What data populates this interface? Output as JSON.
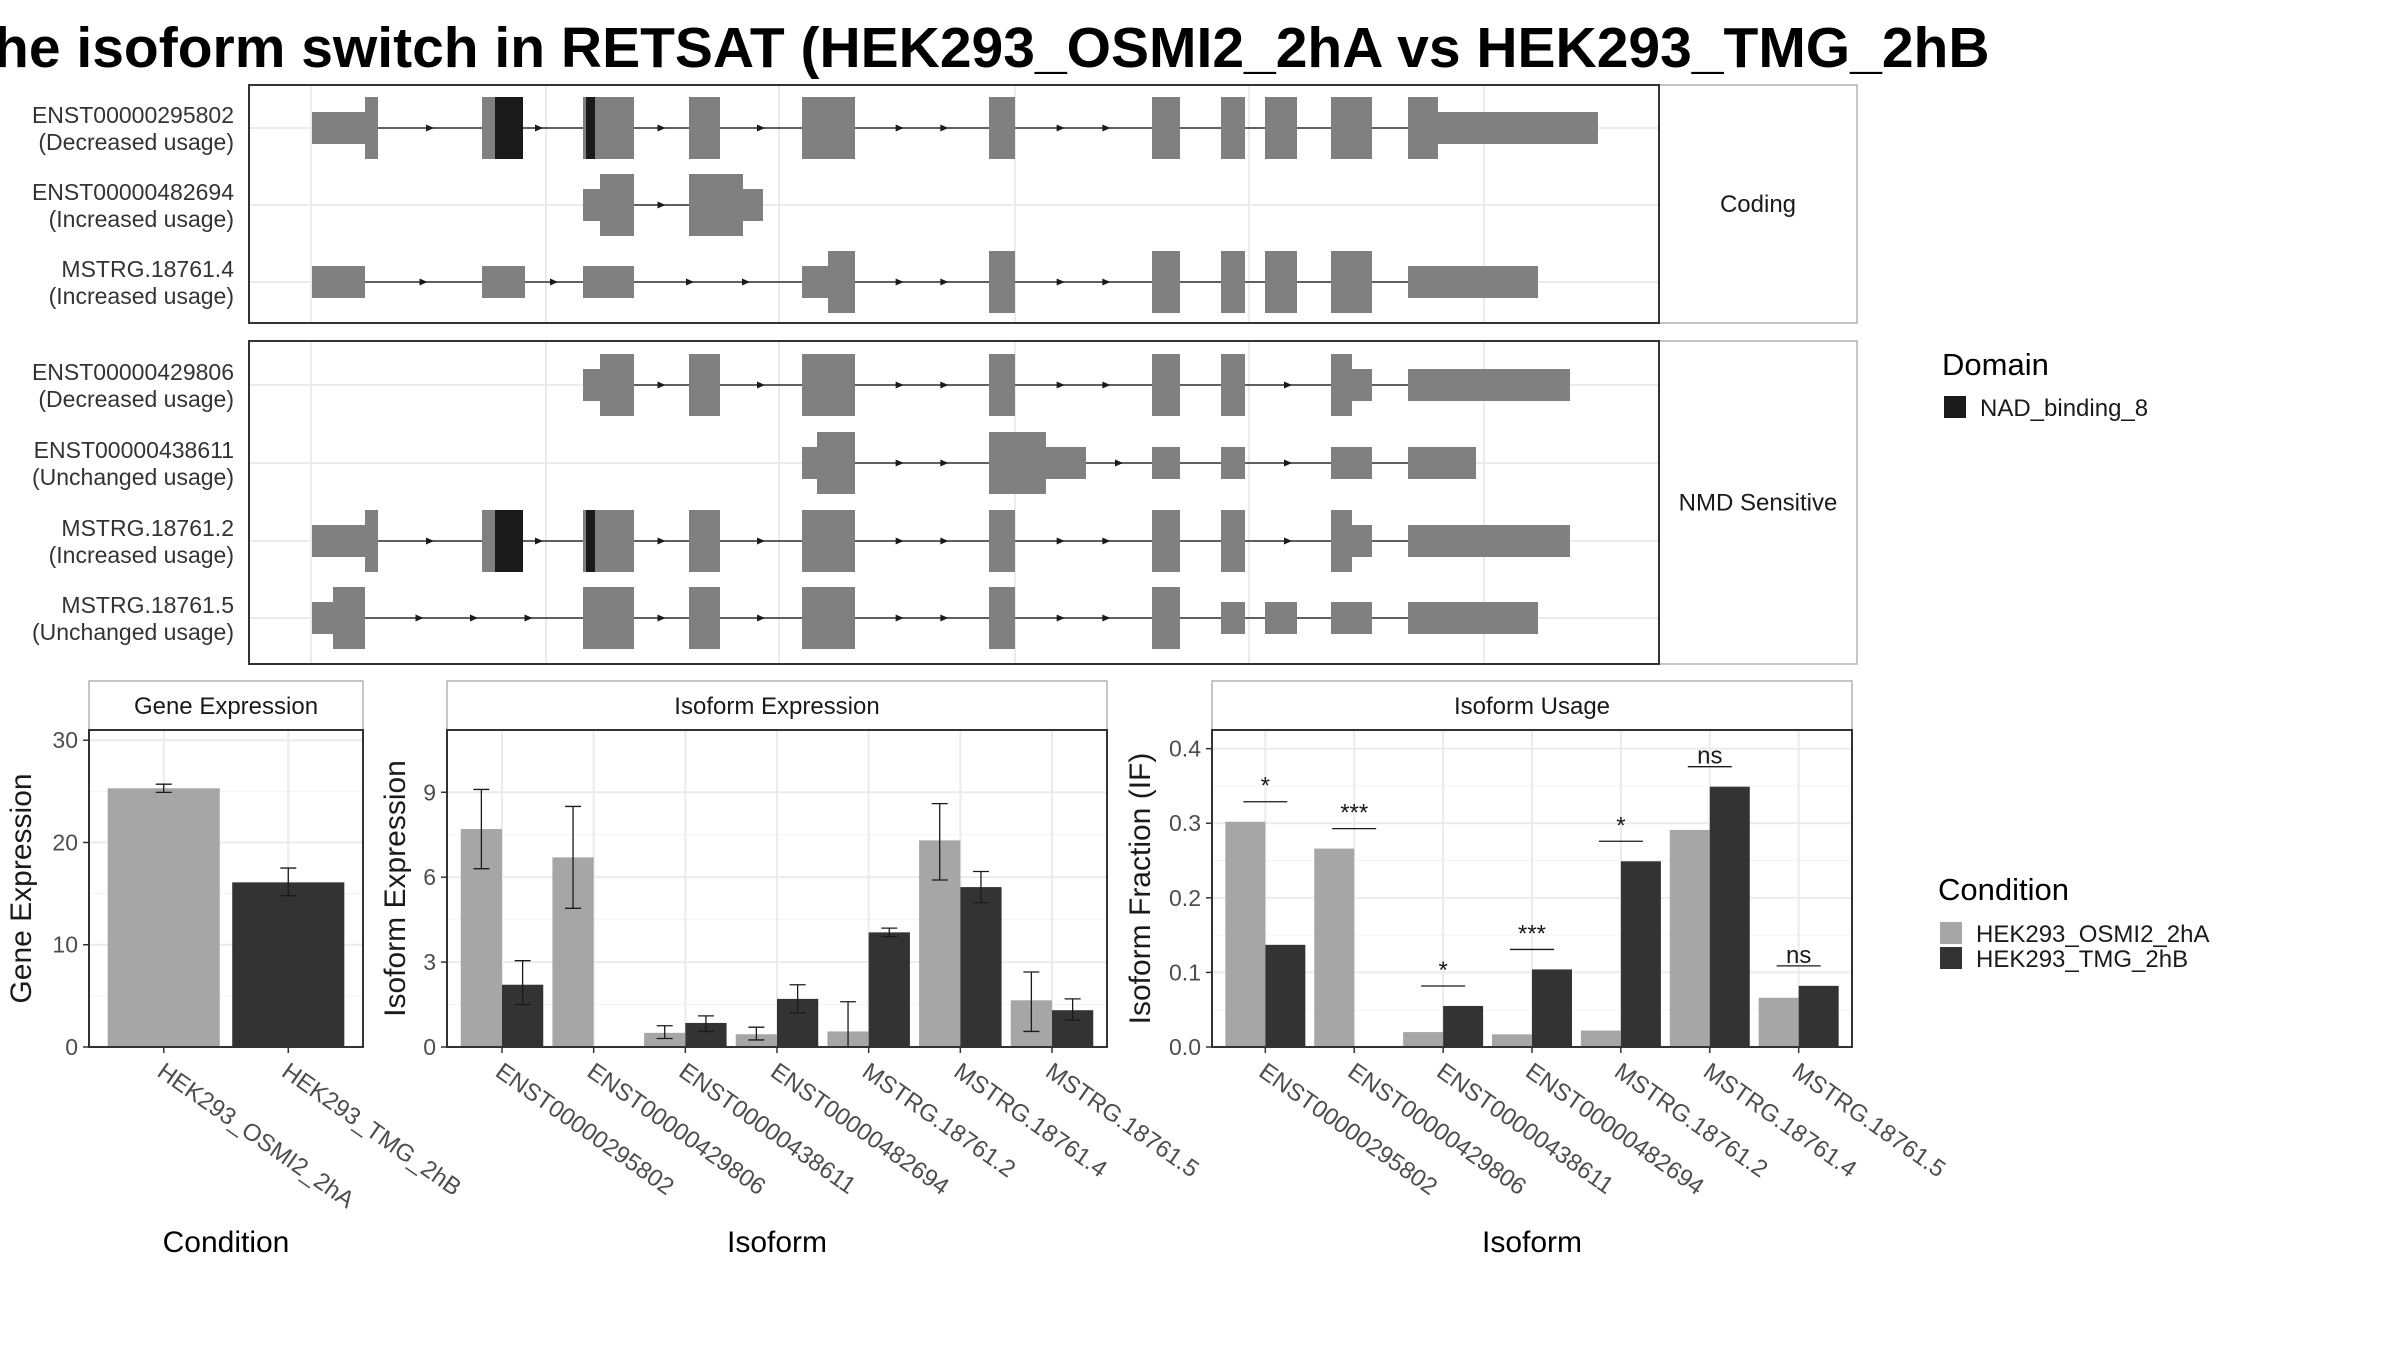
{
  "title": "he isoform switch in RETSAT (HEK293_OSMI2_2hA vs HEK293_TMG_2hB",
  "colors": {
    "exon": "#808080",
    "domain": "#1a1a1a",
    "cond_a": "#a6a6a6",
    "cond_b": "#333333",
    "grid": "#ebebeb",
    "panel_border": "#333333",
    "strip_border": "#b3b3b3"
  },
  "transcript_panels": [
    {
      "label": "Coding",
      "transcripts": [
        {
          "id": "ENST00000295802",
          "usage": "(Decreased usage)"
        },
        {
          "id": "ENST00000482694",
          "usage": "(Increased usage)"
        },
        {
          "id": "MSTRG.18761.4",
          "usage": "(Increased usage)"
        }
      ]
    },
    {
      "label": "NMD Sensitive",
      "transcripts": [
        {
          "id": "ENST00000429806",
          "usage": "(Decreased usage)"
        },
        {
          "id": "ENST00000438611",
          "usage": "(Unchanged usage)"
        },
        {
          "id": "MSTRG.18761.2",
          "usage": "(Increased usage)"
        },
        {
          "id": "MSTRG.18761.5",
          "usage": "(Unchanged usage)"
        }
      ]
    }
  ],
  "domain_legend": {
    "title": "Domain",
    "items": [
      {
        "name": "NAD_binding_8",
        "color": "#1a1a1a"
      }
    ]
  },
  "condition_legend": {
    "title": "Condition",
    "items": [
      {
        "name": "HEK293_OSMI2_2hA",
        "color": "#a6a6a6"
      },
      {
        "name": "HEK293_TMG_2hB",
        "color": "#333333"
      }
    ]
  },
  "chart_data": [
    {
      "type": "bar",
      "title": "Gene Expression",
      "xlabel": "Condition",
      "ylabel": "Gene Expression",
      "categories": [
        "HEK293_OSMI2_2hA",
        "HEK293_TMG_2hB"
      ],
      "values": [
        25.3,
        16.1
      ],
      "errors": [
        [
          24.9,
          25.7
        ],
        [
          14.8,
          17.5
        ]
      ],
      "ylim": [
        0,
        31
      ],
      "yticks": [
        0,
        10,
        20,
        30
      ]
    },
    {
      "type": "bar",
      "title": "Isoform Expression",
      "xlabel": "Isoform",
      "ylabel": "Isoform Expression",
      "categories": [
        "ENST00000295802",
        "ENST00000429806",
        "ENST00000438611",
        "ENST00000482694",
        "MSTRG.18761.2",
        "MSTRG.18761.4",
        "MSTRG.18761.5"
      ],
      "series": [
        {
          "name": "HEK293_OSMI2_2hA",
          "values": [
            7.7,
            6.7,
            0.5,
            0.45,
            0.55,
            7.3,
            1.65
          ],
          "errors": [
            [
              6.3,
              9.1
            ],
            [
              4.9,
              8.5
            ],
            [
              0.3,
              0.75
            ],
            [
              0.25,
              0.7
            ],
            [
              0.0,
              1.6
            ],
            [
              5.9,
              8.6
            ],
            [
              0.55,
              2.65
            ]
          ]
        },
        {
          "name": "HEK293_TMG_2hB",
          "values": [
            2.2,
            0.0,
            0.85,
            1.7,
            4.05,
            5.65,
            1.3
          ],
          "errors": [
            [
              1.5,
              3.05
            ],
            [
              0.0,
              0.0
            ],
            [
              0.55,
              1.1
            ],
            [
              1.2,
              2.2
            ],
            [
              3.9,
              4.2
            ],
            [
              5.1,
              6.2
            ],
            [
              0.95,
              1.7
            ]
          ]
        }
      ],
      "ylim": [
        0,
        11.2
      ],
      "yticks": [
        0,
        3,
        6,
        9
      ]
    },
    {
      "type": "bar",
      "title": "Isoform Usage",
      "xlabel": "Isoform",
      "ylabel": "Isoform Fraction (IF)",
      "categories": [
        "ENST00000295802",
        "ENST00000429806",
        "ENST00000438611",
        "ENST00000482694",
        "MSTRG.18761.2",
        "MSTRG.18761.4",
        "MSTRG.18761.5"
      ],
      "series": [
        {
          "name": "HEK293_OSMI2_2hA",
          "values": [
            0.302,
            0.266,
            0.02,
            0.017,
            0.022,
            0.291,
            0.066
          ]
        },
        {
          "name": "HEK293_TMG_2hB",
          "values": [
            0.137,
            0.0,
            0.055,
            0.104,
            0.249,
            0.349,
            0.082
          ]
        }
      ],
      "significance": [
        "*",
        "***",
        "*",
        "***",
        "*",
        "ns",
        "ns"
      ],
      "ylim": [
        0,
        0.425
      ],
      "yticks": [
        0.0,
        0.1,
        0.2,
        0.3,
        0.4
      ]
    }
  ]
}
